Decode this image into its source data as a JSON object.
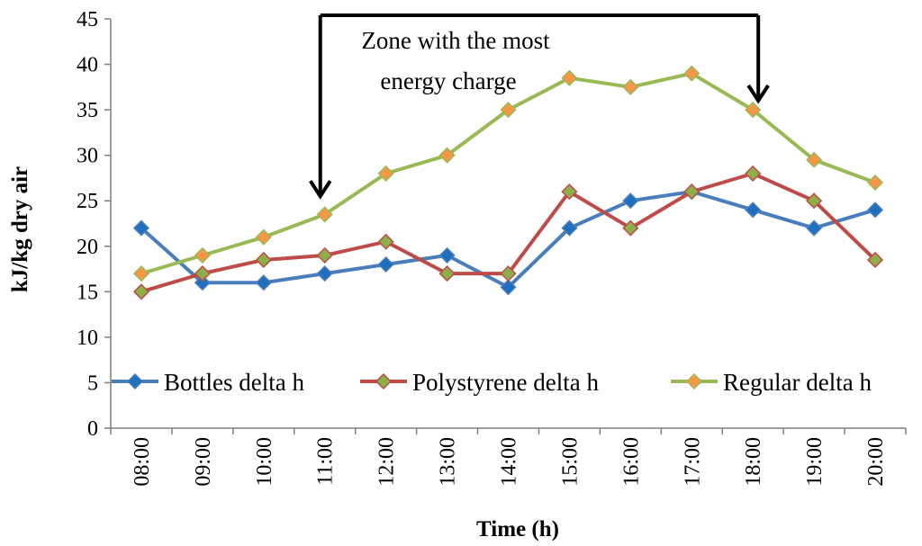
{
  "chart_data": {
    "type": "line",
    "title": "",
    "xlabel": "Time (h)",
    "ylabel": "kJ/kg  dry air",
    "categories": [
      "08:00",
      "09:00",
      "10:00",
      "11:00",
      "12:00",
      "13:00",
      "14:00",
      "15:00",
      "16:00",
      "17:00",
      "18:00",
      "19:00",
      "20:00"
    ],
    "ylim": [
      0,
      45
    ],
    "yticks": [
      "0",
      "5",
      "10",
      "15",
      "20",
      "25",
      "30",
      "35",
      "40",
      "45"
    ],
    "grid": false,
    "legend_position": "inside-bottom",
    "series": [
      {
        "name": "Bottles delta h",
        "color": "#4a7ebb",
        "marker_color": "#1f6fbf",
        "values": [
          22,
          16,
          16,
          17,
          18,
          19,
          15.5,
          22,
          25,
          26,
          24,
          22,
          24
        ]
      },
      {
        "name": "Polystyrene delta h",
        "color": "#be4b48",
        "marker_color": "#8cb047",
        "values": [
          15,
          17,
          18.5,
          19,
          20.5,
          17,
          17,
          26,
          22,
          26,
          28,
          25,
          18.5
        ]
      },
      {
        "name": "Regular delta h",
        "color": "#98b954",
        "marker_color": "#f79646",
        "values": [
          17,
          19,
          21,
          23.5,
          28,
          30,
          35,
          38.5,
          37.5,
          39,
          35,
          29.5,
          27
        ]
      }
    ],
    "annotation": {
      "text_line1": "Zone with the most",
      "text_line2": "energy charge",
      "start_category": "11:00",
      "end_category": "18:00",
      "start_arrow_value": 25.5,
      "end_arrow_value": 36
    }
  }
}
